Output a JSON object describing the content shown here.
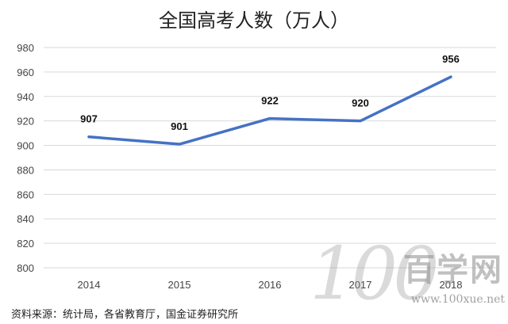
{
  "chart_data": {
    "type": "line",
    "title": "全国高考人数（万人）",
    "categories": [
      "2014",
      "2015",
      "2016",
      "2017",
      "2018"
    ],
    "series": [
      {
        "values": [
          907,
          901,
          922,
          920,
          956
        ],
        "color": "#4472C4"
      }
    ],
    "data_labels": [
      "907",
      "901",
      "922",
      "920",
      "956"
    ],
    "ylim": [
      800,
      980
    ],
    "yticks": [
      "800",
      "820",
      "840",
      "860",
      "880",
      "900",
      "920",
      "940",
      "960",
      "980"
    ],
    "grid": true,
    "legend": "none"
  },
  "source_note": "资料来源：统计局，各省教育厅，国金证券研究所",
  "watermark": {
    "number": "100",
    "brand": "百学网",
    "url": "www.100xue.net"
  }
}
